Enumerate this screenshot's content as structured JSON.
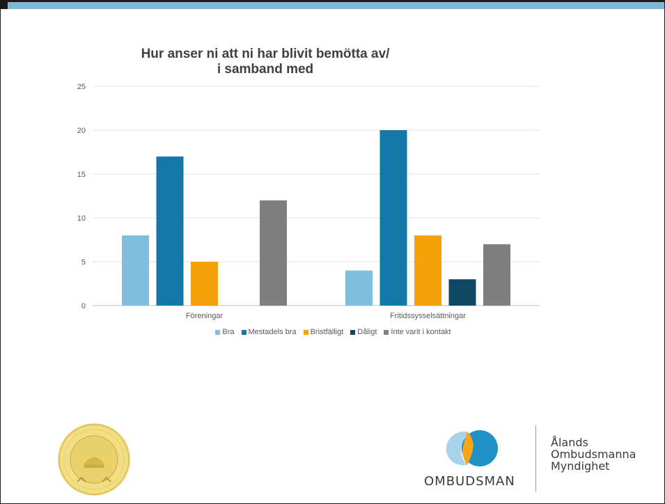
{
  "chart_data": {
    "type": "bar",
    "title_line1": "Hur anser ni att ni har blivit bemötta av/",
    "title_line2": "i samband med",
    "categories": [
      "Föreningar",
      "Fritidssysselsättningar"
    ],
    "series": [
      {
        "name": "Bra",
        "values": [
          8,
          4
        ],
        "color": "#7fbfdd"
      },
      {
        "name": "Mestadels bra",
        "values": [
          17,
          20
        ],
        "color": "#1479a8"
      },
      {
        "name": "Bristfälligt",
        "values": [
          5,
          8
        ],
        "color": "#f5a10a"
      },
      {
        "name": "Dåligt",
        "values": [
          0,
          3
        ],
        "color": "#0f4863"
      },
      {
        "name": "Inte varit i kontakt",
        "values": [
          12,
          7
        ],
        "color": "#7f7f7f"
      }
    ],
    "y_ticks": [
      0,
      5,
      10,
      15,
      20,
      25
    ],
    "ylim": [
      0,
      25
    ],
    "grid": true,
    "legend_position": "bottom"
  },
  "logo": {
    "wordmark": "OMBUDSMAN",
    "name_lines": [
      "Ålands",
      "Ombudsmanna",
      "Myndighet"
    ]
  },
  "colors": {
    "accent_band": "#7db9d6",
    "seal_gold": "#e8d27a"
  }
}
